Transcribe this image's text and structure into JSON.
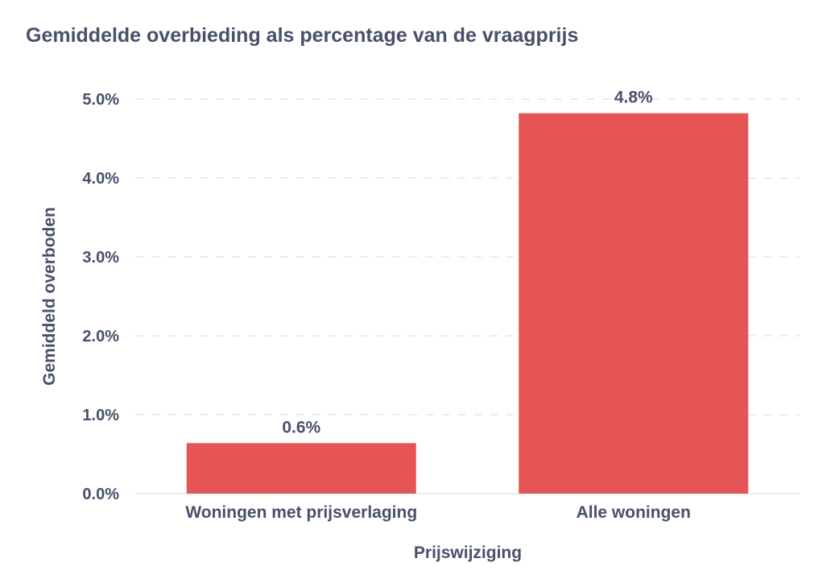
{
  "chart_data": {
    "type": "bar",
    "title": "Gemiddelde overbieding als percentage van de vraagprijs",
    "xlabel": "Prijswijziging",
    "ylabel": "Gemiddeld overboden",
    "categories": [
      "Woningen met prijsverlaging",
      "Alle woningen"
    ],
    "values": [
      0.64,
      4.82
    ],
    "data_labels": [
      "0.6%",
      "4.8%"
    ],
    "ylim": [
      0,
      5.1
    ],
    "yticks": [
      0,
      1,
      2,
      3,
      4,
      5
    ],
    "ytick_labels": [
      "0.0%",
      "1.0%",
      "2.0%",
      "3.0%",
      "4.0%",
      "5.0%"
    ],
    "grid": "horizontal dashed",
    "legend": "none",
    "colors": {
      "bar": "#e55555",
      "text": "#48506b",
      "grid": "#e6e6e6"
    }
  }
}
